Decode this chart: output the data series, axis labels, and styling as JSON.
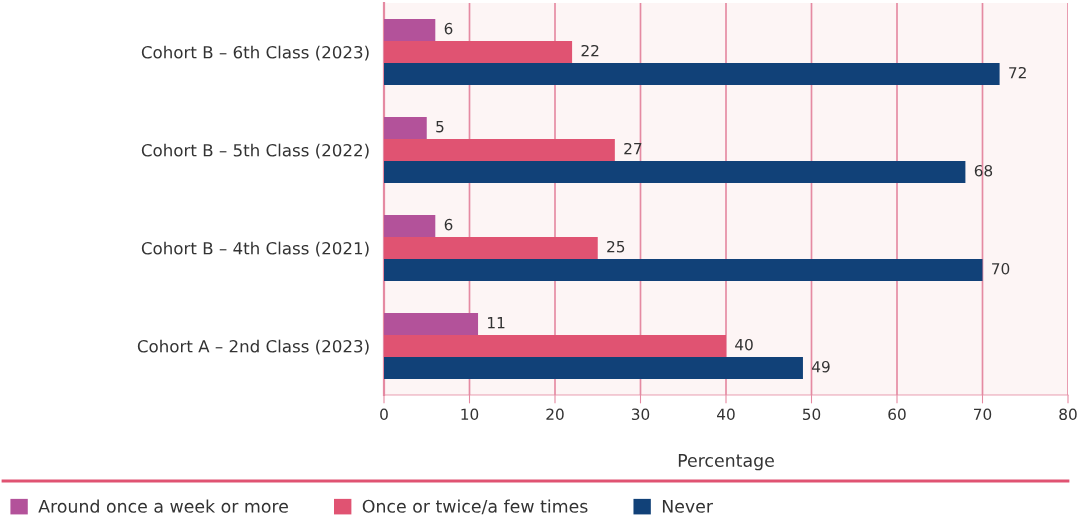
{
  "chart_data": {
    "type": "bar",
    "orientation": "horizontal",
    "xlabel": "Percentage",
    "categories": [
      "Cohort B – 6th Class (2023)",
      "Cohort B – 5th Class (2022)",
      "Cohort B – 4th Class (2021)",
      "Cohort A – 2nd Class (2023)"
    ],
    "series": [
      {
        "name": "Around once a week or more",
        "color": "#b3529a",
        "values": [
          6,
          5,
          6,
          11
        ]
      },
      {
        "name": "Once or twice/a few times",
        "color": "#e05372",
        "values": [
          22,
          27,
          25,
          40
        ]
      },
      {
        "name": "Never",
        "color": "#114178",
        "values": [
          72,
          68,
          70,
          49
        ]
      }
    ],
    "xlim": [
      0,
      80
    ],
    "xticks": [
      0,
      10,
      20,
      30,
      40,
      50,
      60,
      70,
      80
    ],
    "grid": "x",
    "legend": "bottom",
    "data_labels": true
  }
}
